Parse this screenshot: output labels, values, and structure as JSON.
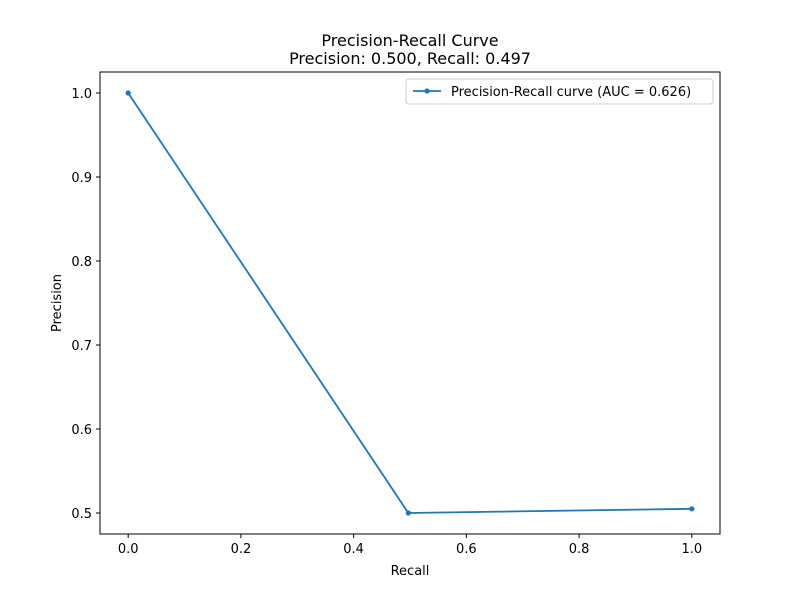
{
  "chart_data": {
    "type": "line",
    "title": "Precision-Recall Curve",
    "subtitle": "Precision: 0.500, Recall: 0.497",
    "xlabel": "Recall",
    "ylabel": "Precision",
    "xlim": [
      -0.05,
      1.05
    ],
    "ylim": [
      0.475,
      1.025
    ],
    "xticks": [
      0.0,
      0.2,
      0.4,
      0.6,
      0.8,
      1.0
    ],
    "xtick_labels": [
      "0.0",
      "0.2",
      "0.4",
      "0.6",
      "0.8",
      "1.0"
    ],
    "yticks": [
      0.5,
      0.6,
      0.7,
      0.8,
      0.9,
      1.0
    ],
    "ytick_labels": [
      "0.5",
      "0.6",
      "0.7",
      "0.8",
      "0.9",
      "1.0"
    ],
    "grid": false,
    "legend_position": "top-right",
    "series": [
      {
        "name": "Precision-Recall curve (AUC = 0.626)",
        "color": "#1f77b4",
        "marker": "circle",
        "x": [
          0.0,
          0.497,
          1.0
        ],
        "y": [
          1.0,
          0.5,
          0.505
        ]
      }
    ]
  }
}
